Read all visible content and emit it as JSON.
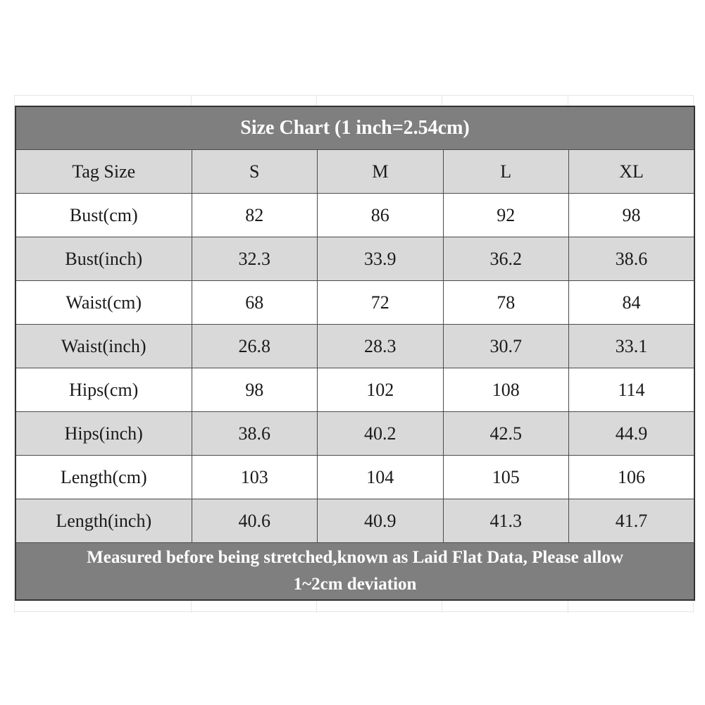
{
  "title": "Size Chart (1 inch=2.54cm)",
  "header": {
    "label": "Tag Size",
    "sizes": [
      "S",
      "M",
      "L",
      "XL"
    ]
  },
  "rows": [
    {
      "label": "Bust(cm)",
      "values": [
        "82",
        "86",
        "92",
        "98"
      ]
    },
    {
      "label": "Bust(inch)",
      "values": [
        "32.3",
        "33.9",
        "36.2",
        "38.6"
      ]
    },
    {
      "label": "Waist(cm)",
      "values": [
        "68",
        "72",
        "78",
        "84"
      ]
    },
    {
      "label": "Waist(inch)",
      "values": [
        "26.8",
        "28.3",
        "30.7",
        "33.1"
      ]
    },
    {
      "label": "Hips(cm)",
      "values": [
        "98",
        "102",
        "108",
        "114"
      ]
    },
    {
      "label": "Hips(inch)",
      "values": [
        "38.6",
        "40.2",
        "42.5",
        "44.9"
      ]
    },
    {
      "label": "Length(cm)",
      "values": [
        "103",
        "104",
        "105",
        "106"
      ]
    },
    {
      "label": "Length(inch)",
      "values": [
        "40.6",
        "40.9",
        "41.3",
        "41.7"
      ]
    }
  ],
  "note_line1": "Measured before being stretched,known as Laid Flat Data, Please allow",
  "note_line2": "1~2cm deviation",
  "colors": {
    "title_bg": "#807f7f",
    "shaded_row": "#d9d9d9",
    "plain_row": "#ffffff",
    "text": "#1a1a1a"
  }
}
